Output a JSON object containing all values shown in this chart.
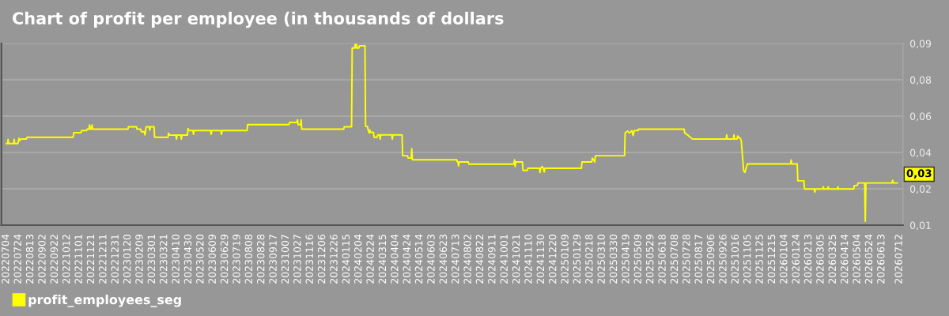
{
  "chart_data": {
    "type": "line",
    "title": "Chart of profit per employee (in thousands of dollars",
    "x": [
      "2022-07-04",
      "2022-07-06",
      "2022-07-07",
      "2022-07-08",
      "2022-07-16",
      "2022-07-17",
      "2022-07-18",
      "2022-07-23",
      "2022-07-24",
      "2022-07-25",
      "2022-07-26",
      "2022-07-28",
      "2022-08-06",
      "2022-08-07",
      "2022-10-22",
      "2022-10-23",
      "2022-11-04",
      "2022-11-05",
      "2022-11-13",
      "2022-11-14",
      "2022-11-17",
      "2022-11-18",
      "2022-11-19",
      "2022-11-21",
      "2022-11-22",
      "2022-11-23",
      "2023-01-20",
      "2023-01-21",
      "2023-02-03",
      "2023-02-04",
      "2023-02-10",
      "2023-02-11",
      "2023-02-16",
      "2023-02-17",
      "2023-02-18",
      "2023-02-19",
      "2023-02-24",
      "2023-02-25",
      "2023-02-26",
      "2023-03-04",
      "2023-03-05",
      "2023-03-27",
      "2023-03-28",
      "2023-03-29",
      "2023-04-09",
      "2023-04-10",
      "2023-04-11",
      "2023-04-17",
      "2023-04-18",
      "2023-04-19",
      "2023-04-28",
      "2023-04-29",
      "2023-04-30",
      "2023-05-07",
      "2023-05-08",
      "2023-05-09",
      "2023-06-05",
      "2023-06-06",
      "2023-06-07",
      "2023-06-22",
      "2023-06-23",
      "2023-06-24",
      "2023-08-04",
      "2023-08-05",
      "2023-10-12",
      "2023-10-13",
      "2023-10-25",
      "2023-10-26",
      "2023-10-27",
      "2023-10-31",
      "2023-11-01",
      "2023-11-02",
      "2024-01-10",
      "2024-01-11",
      "2024-01-23",
      "2024-01-24",
      "2024-01-28",
      "2024-01-29",
      "2024-01-30",
      "2024-01-31",
      "2024-02-01",
      "2024-02-04",
      "2024-02-05",
      "2024-02-14",
      "2024-02-15",
      "2024-02-18",
      "2024-02-19",
      "2024-02-21",
      "2024-02-22",
      "2024-02-23",
      "2024-02-28",
      "2024-02-29",
      "2024-03-05",
      "2024-03-06",
      "2024-03-09",
      "2024-03-10",
      "2024-03-11",
      "2024-03-29",
      "2024-03-30",
      "2024-03-31",
      "2024-04-15",
      "2024-04-16",
      "2024-04-24",
      "2024-04-25",
      "2024-04-30",
      "2024-05-01",
      "2024-05-02",
      "2024-07-14",
      "2024-07-15",
      "2024-07-16",
      "2024-07-17",
      "2024-07-18",
      "2024-08-02",
      "2024-08-03",
      "2024-10-16",
      "2024-10-17",
      "2024-10-18",
      "2024-10-19",
      "2024-10-30",
      "2024-10-31",
      "2024-11-07",
      "2024-11-08",
      "2024-11-27",
      "2024-11-28",
      "2024-11-29",
      "2024-12-02",
      "2024-12-03",
      "2024-12-05",
      "2024-12-06",
      "2025-02-04",
      "2025-02-05",
      "2025-02-21",
      "2025-02-22",
      "2025-02-26",
      "2025-02-27",
      "2025-04-16",
      "2025-04-17",
      "2025-04-21",
      "2025-04-24",
      "2025-04-28",
      "2025-04-30",
      "2025-05-02",
      "2025-05-08",
      "2025-05-09",
      "2025-07-23",
      "2025-07-24",
      "2025-07-30",
      "2025-08-06",
      "2025-09-30",
      "2025-10-01",
      "2025-10-02",
      "2025-10-12",
      "2025-10-13",
      "2025-10-14",
      "2025-10-18",
      "2025-10-19",
      "2025-10-24",
      "2025-10-25",
      "2025-10-29",
      "2025-10-31",
      "2025-11-04",
      "2026-01-14",
      "2026-01-15",
      "2026-01-16",
      "2026-01-25",
      "2026-01-26",
      "2026-02-05",
      "2026-02-06",
      "2026-02-22",
      "2026-02-23",
      "2026-02-24",
      "2026-03-08",
      "2026-03-09",
      "2026-03-10",
      "2026-03-16",
      "2026-03-17",
      "2026-03-18",
      "2026-04-01",
      "2026-04-02",
      "2026-04-03",
      "2026-04-28",
      "2026-04-29",
      "2026-05-04",
      "2026-05-05",
      "2026-05-16",
      "2026-05-17",
      "2026-05-18",
      "2026-06-30",
      "2026-07-01",
      "2026-07-02",
      "2026-07-09"
    ],
    "series": [
      {
        "name": "profit_employees_seg",
        "color": "#ffff00",
        "values": [
          0.0457,
          0.0457,
          0.0476,
          0.0457,
          0.0457,
          0.0476,
          0.0457,
          0.0457,
          0.047,
          0.0482,
          0.047,
          0.0478,
          0.0478,
          0.0486,
          0.0486,
          0.0507,
          0.0507,
          0.0517,
          0.0517,
          0.0524,
          0.0524,
          0.0543,
          0.0524,
          0.0524,
          0.0543,
          0.0524,
          0.0524,
          0.0535,
          0.0535,
          0.0524,
          0.0524,
          0.0512,
          0.0512,
          0.0497,
          0.0512,
          0.0535,
          0.0535,
          0.0519,
          0.0535,
          0.0535,
          0.0486,
          0.0486,
          0.0506,
          0.0496,
          0.0496,
          0.0478,
          0.0496,
          0.0496,
          0.0478,
          0.0496,
          0.0496,
          0.0527,
          0.0517,
          0.0517,
          0.05,
          0.0517,
          0.0517,
          0.05,
          0.0517,
          0.0517,
          0.05,
          0.0517,
          0.0517,
          0.0545,
          0.0545,
          0.0555,
          0.0555,
          0.0567,
          0.0545,
          0.0545,
          0.0567,
          0.0524,
          0.0524,
          0.0535,
          0.0535,
          0.0899,
          0.0899,
          0.0916,
          0.0899,
          0.0916,
          0.0899,
          0.0899,
          0.0909,
          0.0909,
          0.0537,
          0.0537,
          0.0524,
          0.0506,
          0.052,
          0.0509,
          0.0509,
          0.0486,
          0.0486,
          0.0497,
          0.0497,
          0.0478,
          0.0497,
          0.0497,
          0.0478,
          0.0497,
          0.0497,
          0.0401,
          0.0401,
          0.039,
          0.039,
          0.0433,
          0.0382,
          0.0382,
          0.0372,
          0.0372,
          0.0354,
          0.0372,
          0.0372,
          0.0362,
          0.0362,
          0.0382,
          0.0351,
          0.0372,
          0.0372,
          0.0333,
          0.0333,
          0.0343,
          0.0343,
          0.0324,
          0.0343,
          0.0351,
          0.0343,
          0.0326,
          0.0343,
          0.0343,
          0.0372,
          0.0372,
          0.039,
          0.0372,
          0.0401,
          0.0401,
          0.0506,
          0.0515,
          0.0506,
          0.0517,
          0.0494,
          0.0517,
          0.0517,
          0.0524,
          0.0524,
          0.0506,
          0.0494,
          0.0478,
          0.0478,
          0.0497,
          0.0478,
          0.0478,
          0.0497,
          0.0478,
          0.0478,
          0.0492,
          0.0478,
          0.047,
          0.0331,
          0.0324,
          0.0363,
          0.0363,
          0.0381,
          0.0363,
          0.0363,
          0.0285,
          0.0285,
          0.0247,
          0.0247,
          0.0232,
          0.0247,
          0.0247,
          0.0257,
          0.0247,
          0.0247,
          0.0257,
          0.0247,
          0.0247,
          0.0257,
          0.0247,
          0.0247,
          0.0263,
          0.0263,
          0.0275,
          0.0275,
          0.0098,
          0.0275,
          0.0275,
          0.0287,
          0.0275,
          0.0275
        ]
      }
    ],
    "xlim": [
      "2022-06-26",
      "2026-07-18"
    ],
    "xticks": [
      {
        "value": "2022-07-04",
        "label": "20220704"
      },
      {
        "value": "2022-07-24",
        "label": "20220724"
      },
      {
        "value": "2022-08-13",
        "label": "20220813"
      },
      {
        "value": "2022-09-02",
        "label": "20220902"
      },
      {
        "value": "2022-09-22",
        "label": "20220922"
      },
      {
        "value": "2022-10-12",
        "label": "20221012"
      },
      {
        "value": "2022-11-01",
        "label": "20221101"
      },
      {
        "value": "2022-11-21",
        "label": "20221121"
      },
      {
        "value": "2022-12-11",
        "label": "20221211"
      },
      {
        "value": "2022-12-31",
        "label": "20221231"
      },
      {
        "value": "2023-01-20",
        "label": "20230120"
      },
      {
        "value": "2023-02-09",
        "label": "20230209"
      },
      {
        "value": "2023-03-01",
        "label": "20230301"
      },
      {
        "value": "2023-03-21",
        "label": "20230321"
      },
      {
        "value": "2023-04-10",
        "label": "20230410"
      },
      {
        "value": "2023-04-30",
        "label": "20230430"
      },
      {
        "value": "2023-05-20",
        "label": "20230520"
      },
      {
        "value": "2023-06-09",
        "label": "20230609"
      },
      {
        "value": "2023-06-29",
        "label": "20230629"
      },
      {
        "value": "2023-07-19",
        "label": "20230719"
      },
      {
        "value": "2023-08-08",
        "label": "20230808"
      },
      {
        "value": "2023-08-28",
        "label": "20230828"
      },
      {
        "value": "2023-09-17",
        "label": "20230917"
      },
      {
        "value": "2023-10-07",
        "label": "20231007"
      },
      {
        "value": "2023-10-27",
        "label": "20231027"
      },
      {
        "value": "2023-11-16",
        "label": "20231116"
      },
      {
        "value": "2023-12-06",
        "label": "20231206"
      },
      {
        "value": "2023-12-26",
        "label": "20231226"
      },
      {
        "value": "2024-01-15",
        "label": "20240115"
      },
      {
        "value": "2024-02-04",
        "label": "20240204"
      },
      {
        "value": "2024-02-24",
        "label": "20240224"
      },
      {
        "value": "2024-03-15",
        "label": "20240315"
      },
      {
        "value": "2024-04-04",
        "label": "20240404"
      },
      {
        "value": "2024-04-24",
        "label": "20240424"
      },
      {
        "value": "2024-05-14",
        "label": "20240514"
      },
      {
        "value": "2024-06-03",
        "label": "20240603"
      },
      {
        "value": "2024-06-23",
        "label": "20240623"
      },
      {
        "value": "2024-07-13",
        "label": "20240713"
      },
      {
        "value": "2024-08-02",
        "label": "20240802"
      },
      {
        "value": "2024-08-22",
        "label": "20240822"
      },
      {
        "value": "2024-09-11",
        "label": "20240911"
      },
      {
        "value": "2024-10-01",
        "label": "20241001"
      },
      {
        "value": "2024-10-21",
        "label": "20241021"
      },
      {
        "value": "2024-11-10",
        "label": "20241110"
      },
      {
        "value": "2024-11-30",
        "label": "20241130"
      },
      {
        "value": "2024-12-20",
        "label": "20241220"
      },
      {
        "value": "2025-01-09",
        "label": "20250109"
      },
      {
        "value": "2025-01-29",
        "label": "20250129"
      },
      {
        "value": "2025-02-18",
        "label": "20250218"
      },
      {
        "value": "2025-03-10",
        "label": "20250310"
      },
      {
        "value": "2025-03-30",
        "label": "20250330"
      },
      {
        "value": "2025-04-19",
        "label": "20250419"
      },
      {
        "value": "2025-05-09",
        "label": "20250509"
      },
      {
        "value": "2025-05-29",
        "label": "20250529"
      },
      {
        "value": "2025-06-18",
        "label": "20250618"
      },
      {
        "value": "2025-07-08",
        "label": "20250708"
      },
      {
        "value": "2025-07-28",
        "label": "20250728"
      },
      {
        "value": "2025-08-17",
        "label": "20250817"
      },
      {
        "value": "2025-09-06",
        "label": "20250906"
      },
      {
        "value": "2025-09-26",
        "label": "20250926"
      },
      {
        "value": "2025-10-16",
        "label": "20251016"
      },
      {
        "value": "2025-11-05",
        "label": "20251105"
      },
      {
        "value": "2025-11-25",
        "label": "20251125"
      },
      {
        "value": "2025-12-15",
        "label": "20251215"
      },
      {
        "value": "2026-01-04",
        "label": "20260104"
      },
      {
        "value": "2026-01-24",
        "label": "20260124"
      },
      {
        "value": "2026-02-13",
        "label": "20260213"
      },
      {
        "value": "2026-03-05",
        "label": "20260305"
      },
      {
        "value": "2026-03-25",
        "label": "20260325"
      },
      {
        "value": "2026-04-14",
        "label": "20260414"
      },
      {
        "value": "2026-05-04",
        "label": "20260504"
      },
      {
        "value": "2026-05-24",
        "label": "20260524"
      },
      {
        "value": "2026-06-13",
        "label": "20260613"
      },
      {
        "value": "2026-07-12",
        "label": "20260712"
      }
    ],
    "ylim": [
      0.008,
      0.092
    ],
    "yticks": [
      {
        "value": 0.008,
        "label": "0,01"
      },
      {
        "value": 0.0248,
        "label": "0,02"
      },
      {
        "value": 0.0416,
        "label": "0,04"
      },
      {
        "value": 0.0584,
        "label": "0,06"
      },
      {
        "value": 0.0752,
        "label": "0,08"
      },
      {
        "value": 0.092,
        "label": "0,09"
      }
    ],
    "grid": "y",
    "legend": "bottom left",
    "annotations": [
      {
        "text": "0,03",
        "x": "2026-07-09",
        "y": 0.0275
      }
    ]
  }
}
